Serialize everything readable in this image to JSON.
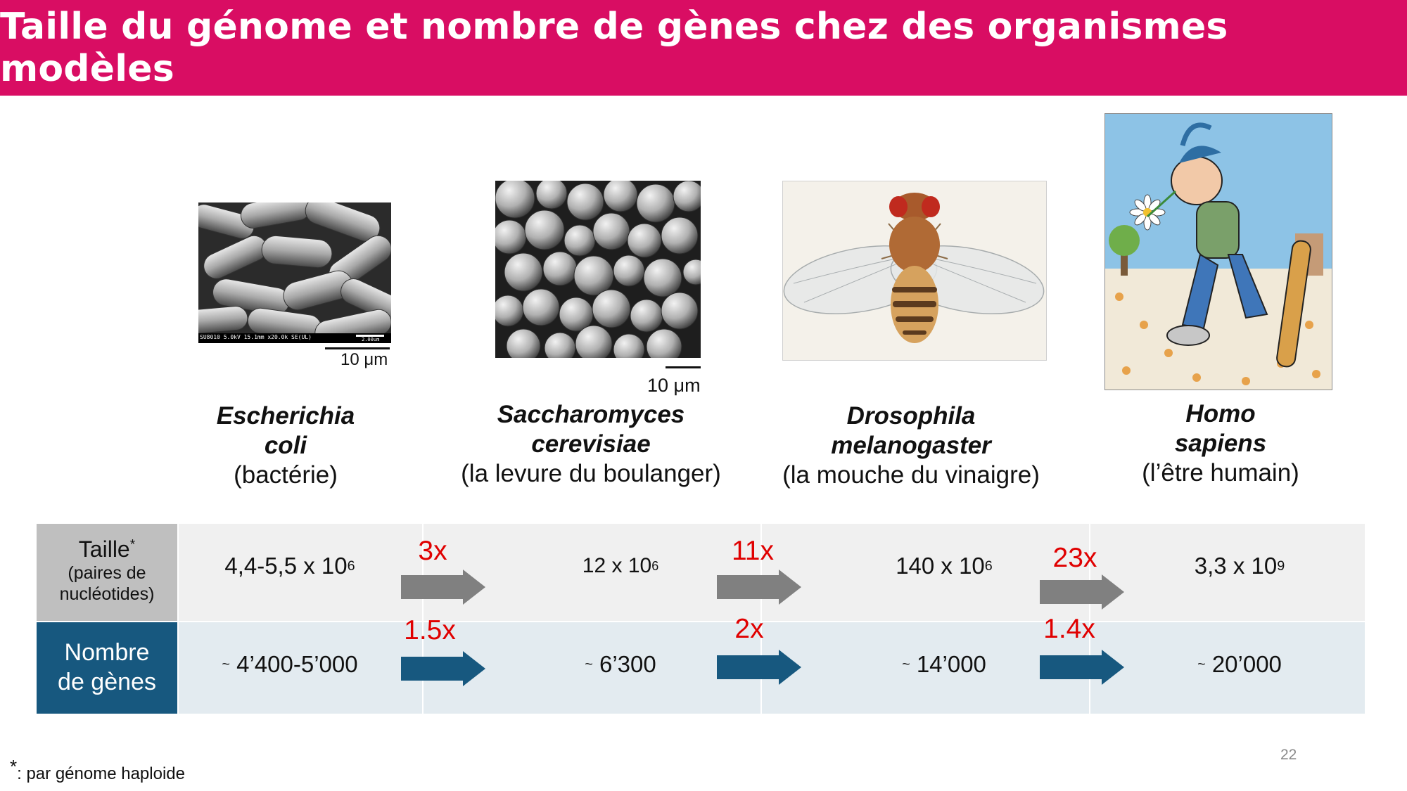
{
  "title": "Taille du génome et nombre de gènes chez des organismes modèles",
  "organisms": [
    {
      "name_line1": "Escherichia",
      "name_line2": "coli",
      "common": "(bactérie)",
      "scale_bar": "10 μm",
      "micrograph_caption": "SU8010 5.0kV 15.1mm x20.0k SE(UL)",
      "micrograph_scale": "2.00um"
    },
    {
      "name_line1": "Saccharomyces",
      "name_line2": "cerevisiae",
      "common": "(la levure du boulanger)",
      "scale_bar": "10 μm"
    },
    {
      "name_line1": "Drosophila",
      "name_line2": "melanogaster",
      "common": "(la mouche du vinaigre)"
    },
    {
      "name_line1": "Homo",
      "name_line2": "sapiens",
      "common": "(l’être humain)"
    }
  ],
  "table": {
    "row1_header": {
      "main": "Taille",
      "star": "*",
      "sub1": "(paires de",
      "sub2": "nucléotides)"
    },
    "row2_header": {
      "line1": "Nombre",
      "line2": "de gènes"
    },
    "sizes": [
      {
        "base": "4,4-5,5 x 10",
        "exp": "6"
      },
      {
        "base": "12 x 10",
        "exp": "6"
      },
      {
        "base": "140 x 10",
        "exp": "6"
      },
      {
        "base": "3,3 x 10",
        "exp": "9"
      }
    ],
    "genes": [
      {
        "tilde": "~",
        "value": "4’400-5’000"
      },
      {
        "tilde": "~",
        "value": "6’300"
      },
      {
        "tilde": "~",
        "value": "14’000"
      },
      {
        "tilde": "~",
        "value": "20’000"
      }
    ],
    "size_ratios": [
      "3x",
      "11x",
      "23x"
    ],
    "gene_ratios": [
      "1.5x",
      "2x",
      "1.4x"
    ]
  },
  "colors": {
    "title_bar": "#d90d63",
    "size_header": "#bfbfbf",
    "gene_header": "#17587f",
    "size_arrow": "#808080",
    "gene_arrow": "#17587f",
    "ratio": "#e00000"
  },
  "footnote": {
    "star": "*",
    "text": ": par génome haploide"
  },
  "page_number": "22"
}
